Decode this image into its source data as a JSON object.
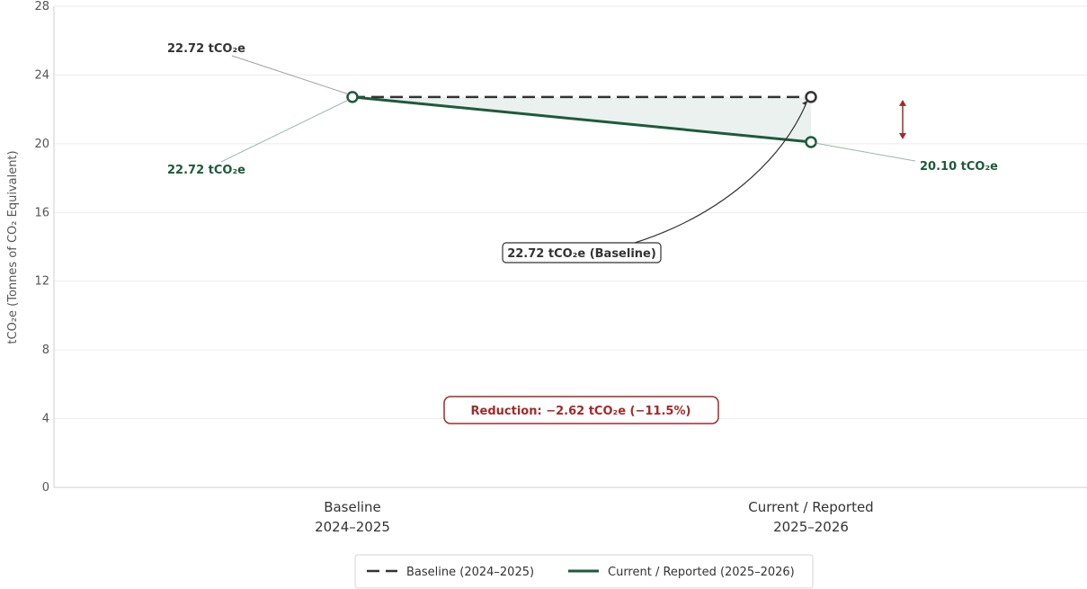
{
  "chart_data": {
    "type": "line",
    "categories": [
      "Baseline\n2024–2025",
      "Current / Reported\n2025–2026"
    ],
    "ylabel": "tCO₂e  (Tonnes of CO₂ Equivalent)",
    "ylim": [
      0,
      28
    ],
    "yticks": [
      0,
      4,
      8,
      12,
      16,
      20,
      24,
      28
    ],
    "grid": true,
    "legend_position": "bottom-center",
    "series": [
      {
        "name": "Baseline (2024–2025)",
        "values": [
          22.72,
          22.72
        ],
        "color": "#333333",
        "style": "dashed"
      },
      {
        "name": "Current / Reported (2025–2026)",
        "values": [
          22.72,
          20.1
        ],
        "color": "#1e5a3a",
        "style": "solid"
      }
    ],
    "annotations": {
      "baseline_start": "22.72 tCO₂e",
      "current_start": "22.72 tCO₂e",
      "current_end": "20.10 tCO₂e",
      "baseline_end": "22.72 tCO₂e  (Baseline)",
      "reduction": "Reduction:  −2.62 tCO₂e  (−11.5%)"
    },
    "colors": {
      "baseline": "#333333",
      "current": "#1e5a3a",
      "reduction": "#a12a2a",
      "fill": "#e8eeec"
    }
  }
}
